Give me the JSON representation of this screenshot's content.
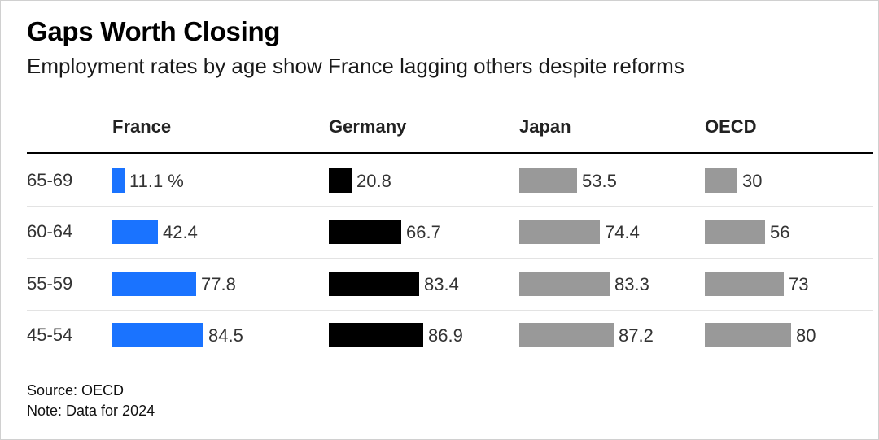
{
  "title": "Gaps Worth Closing",
  "subtitle": "Employment rates by age show France lagging others despite reforms",
  "chart_data": {
    "type": "bar",
    "categories": [
      "65-69",
      "60-64",
      "55-59",
      "45-54"
    ],
    "series": [
      {
        "name": "France",
        "values": [
          11.1,
          42.4,
          77.8,
          84.5
        ],
        "labels": [
          "11.1 %",
          "42.4",
          "77.8",
          "84.5"
        ],
        "color": "#1a73ff"
      },
      {
        "name": "Germany",
        "values": [
          20.8,
          66.7,
          83.4,
          86.9
        ],
        "labels": [
          "20.8",
          "66.7",
          "83.4",
          "86.9"
        ],
        "color": "#000000"
      },
      {
        "name": "Japan",
        "values": [
          53.5,
          74.4,
          83.3,
          87.2
        ],
        "labels": [
          "53.5",
          "74.4",
          "83.3",
          "87.2"
        ],
        "color": "#999999"
      },
      {
        "name": "OECD",
        "values": [
          30,
          56,
          73,
          80
        ],
        "labels": [
          "30",
          "56",
          "73",
          "80"
        ],
        "color": "#999999"
      }
    ],
    "unit": "%",
    "xlim": [
      0,
      100
    ]
  },
  "footer": {
    "source": "Source: OECD",
    "note": "Note: Data for 2024"
  }
}
